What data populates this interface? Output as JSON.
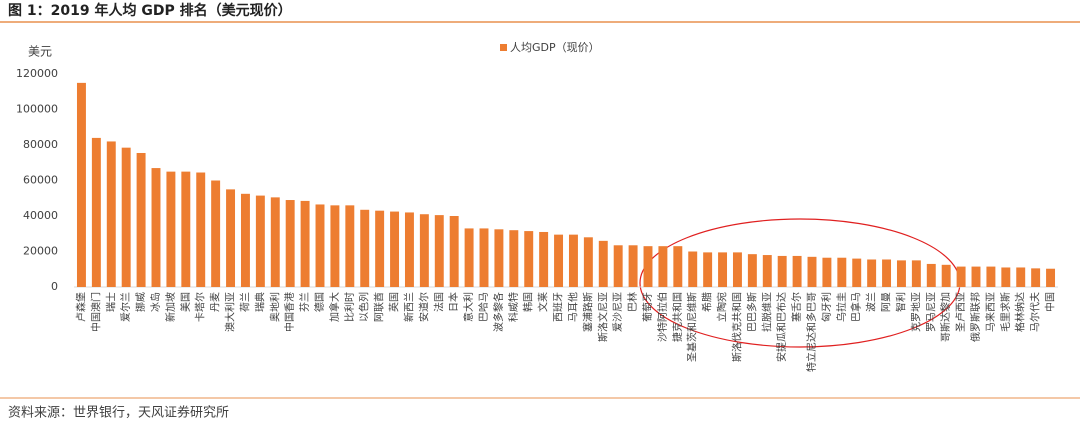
{
  "chart_data": {
    "type": "bar",
    "title": "图 1：2019 年人均 GDP 排名（美元现价）",
    "y_label": "美元",
    "source": "资料来源：世界银行，天风证券研究所",
    "categories": [
      "卢森堡",
      "中国澳门",
      "瑞士",
      "爱尔兰",
      "挪威",
      "冰岛",
      "新加坡",
      "美国",
      "卡塔尔",
      "丹麦",
      "澳大利亚",
      "荷兰",
      "瑞典",
      "奥地利",
      "中国香港",
      "芬兰",
      "德国",
      "加拿大",
      "比利时",
      "以色列",
      "阿联酋",
      "英国",
      "新西兰",
      "安道尔",
      "法国",
      "日本",
      "意大利",
      "巴哈马",
      "波多黎各",
      "科威特",
      "韩国",
      "文莱",
      "西班牙",
      "马耳他",
      "塞浦路斯",
      "斯洛文尼亚",
      "爱沙尼亚",
      "巴林",
      "葡萄牙",
      "沙特阿拉伯",
      "捷克共和国",
      "圣基茨和尼维斯",
      "希腊",
      "立陶宛",
      "斯洛伐克共和国",
      "巴巴多斯",
      "拉脱维亚",
      "安提瓜和巴布达",
      "塞舌尔",
      "特立尼达和多巴哥",
      "匈牙利",
      "乌拉圭",
      "巴拿马",
      "波兰",
      "阿曼",
      "智利",
      "克罗地亚",
      "罗马尼亚",
      "哥斯达黎加",
      "圣卢西亚",
      "俄罗斯联邦",
      "马来西亚",
      "毛里求斯",
      "格林纳达",
      "马尔代夫",
      "中国"
    ],
    "series": [
      {
        "name": "人均GDP（现价）",
        "color": "#ed7d31",
        "values": [
          115000,
          84000,
          82000,
          78500,
          75500,
          67000,
          65000,
          65000,
          64500,
          60000,
          55000,
          52500,
          51500,
          50500,
          49000,
          48500,
          46500,
          46000,
          46000,
          43500,
          43000,
          42500,
          42000,
          41000,
          40500,
          40000,
          33000,
          33000,
          32500,
          32000,
          31500,
          31000,
          29500,
          29500,
          28000,
          26000,
          23500,
          23500,
          23000,
          23000,
          23000,
          20000,
          19500,
          19500,
          19500,
          18500,
          18000,
          17500,
          17500,
          17000,
          16500,
          16500,
          16000,
          15500,
          15500,
          15000,
          15000,
          13000,
          12500,
          11500,
          11500,
          11500,
          11000,
          11000,
          10500,
          10300
        ]
      }
    ],
    "ylim": [
      0,
      120000
    ],
    "yticks": [
      0,
      20000,
      40000,
      60000,
      80000,
      100000,
      120000
    ]
  }
}
